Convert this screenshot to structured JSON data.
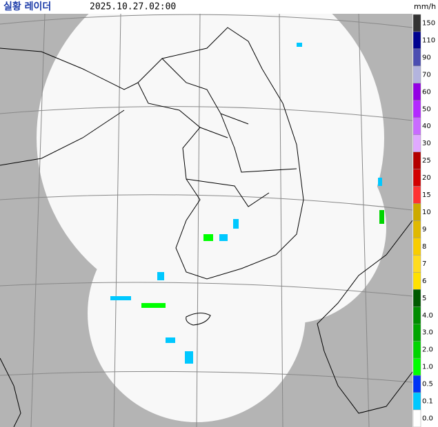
{
  "header": {
    "title": "실황 레이더",
    "time": "2025.10.27.02:00",
    "unit": "mm/h"
  },
  "legend": [
    {
      "label": "150",
      "color": "#333333"
    },
    {
      "label": "110",
      "color": "#000390"
    },
    {
      "label": "90",
      "color": "#4c4eb1"
    },
    {
      "label": "70",
      "color": "#b3b4de"
    },
    {
      "label": "60",
      "color": "#9300e4"
    },
    {
      "label": "50",
      "color": "#b329ff"
    },
    {
      "label": "40",
      "color": "#c96bff"
    },
    {
      "label": "30",
      "color": "#e0a9ff"
    },
    {
      "label": "25",
      "color": "#b40000"
    },
    {
      "label": "20",
      "color": "#d20000"
    },
    {
      "label": "15",
      "color": "#ff3333"
    },
    {
      "label": "10",
      "color": "#ccaa00"
    },
    {
      "label": "9",
      "color": "#e0b900"
    },
    {
      "label": "8",
      "color": "#f9cd00"
    },
    {
      "label": "7",
      "color": "#ffdc1f"
    },
    {
      "label": "6",
      "color": "#ffe100"
    },
    {
      "label": "5",
      "color": "#005a00"
    },
    {
      "label": "4.0",
      "color": "#008c00"
    },
    {
      "label": "3.0",
      "color": "#00a500"
    },
    {
      "label": "2.0",
      "color": "#00d500"
    },
    {
      "label": "1.0",
      "color": "#00ff00"
    },
    {
      "label": "0.5",
      "color": "#0033f5"
    },
    {
      "label": "0.1",
      "color": "#00c8ff"
    },
    {
      "label": "0.0",
      "color": "#ffffff"
    }
  ]
}
